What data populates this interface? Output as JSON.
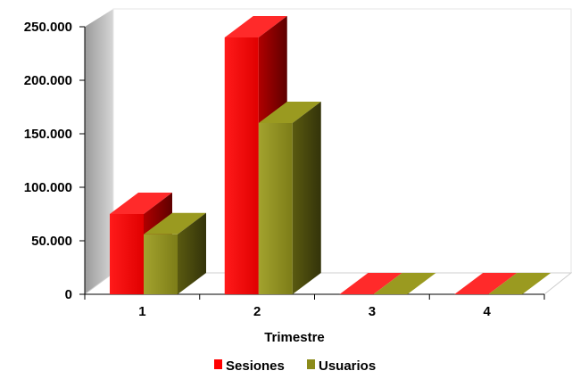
{
  "chart_data": {
    "type": "bar",
    "bar_style": "3d-clustered",
    "categories": [
      "1",
      "2",
      "3",
      "4"
    ],
    "series": [
      {
        "name": "Sesiones",
        "values": [
          75000,
          240000,
          0,
          0
        ],
        "color": "#ff0000"
      },
      {
        "name": "Usuarios",
        "values": [
          56000,
          160000,
          0,
          0
        ],
        "color": "#8b8b1a"
      }
    ],
    "xlabel": "Trimestre",
    "ylabel": "",
    "ylim": [
      0,
      250000
    ],
    "yticks": [
      "0",
      "50.000",
      "100.000",
      "150.000",
      "200.000",
      "250.000"
    ],
    "grid": false,
    "legend": "bottom"
  }
}
